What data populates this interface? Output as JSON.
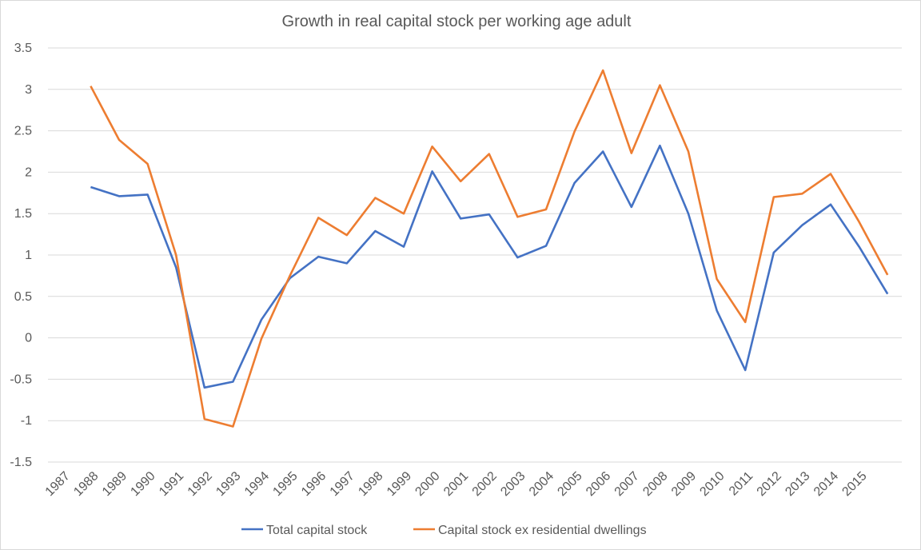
{
  "chart_data": {
    "type": "line",
    "title": "Growth in real capital stock per working age adult",
    "xlabel": "",
    "ylabel": "",
    "categories": [
      "1987",
      "1988",
      "1989",
      "1990",
      "1991",
      "1992",
      "1993",
      "1994",
      "1995",
      "1996",
      "1997",
      "1998",
      "1999",
      "2000",
      "2001",
      "2002",
      "2003",
      "2004",
      "2005",
      "2006",
      "2007",
      "2008",
      "2009",
      "2010",
      "2011",
      "2012",
      "2013",
      "2014",
      "2015",
      ""
    ],
    "ylim": [
      -1.5,
      3.5
    ],
    "yticks": [
      "3.5",
      "3",
      "2.5",
      "2",
      "1.5",
      "1",
      "0.5",
      "0",
      "-0.5",
      "-1",
      "-1.5"
    ],
    "grid": true,
    "legend_position": "bottom",
    "series": [
      {
        "name": "Total capital stock",
        "color": "#4472C4",
        "values": [
          null,
          1.82,
          1.71,
          1.73,
          0.85,
          -0.6,
          -0.53,
          0.22,
          0.72,
          0.98,
          0.9,
          1.29,
          1.1,
          2.01,
          1.44,
          1.49,
          0.97,
          1.11,
          1.87,
          2.25,
          1.58,
          2.32,
          1.5,
          0.33,
          -0.39,
          1.03,
          1.36,
          1.61,
          1.1,
          0.53
        ]
      },
      {
        "name": "Capital stock ex residential dwellings",
        "color": "#ED7D31",
        "values": [
          null,
          3.04,
          2.39,
          2.1,
          1.0,
          -0.98,
          -1.07,
          -0.01,
          0.75,
          1.45,
          1.24,
          1.69,
          1.5,
          2.31,
          1.89,
          2.22,
          1.46,
          1.55,
          2.49,
          3.23,
          2.23,
          3.05,
          2.25,
          0.71,
          0.19,
          1.7,
          1.74,
          1.98,
          1.4,
          0.76
        ]
      }
    ]
  }
}
